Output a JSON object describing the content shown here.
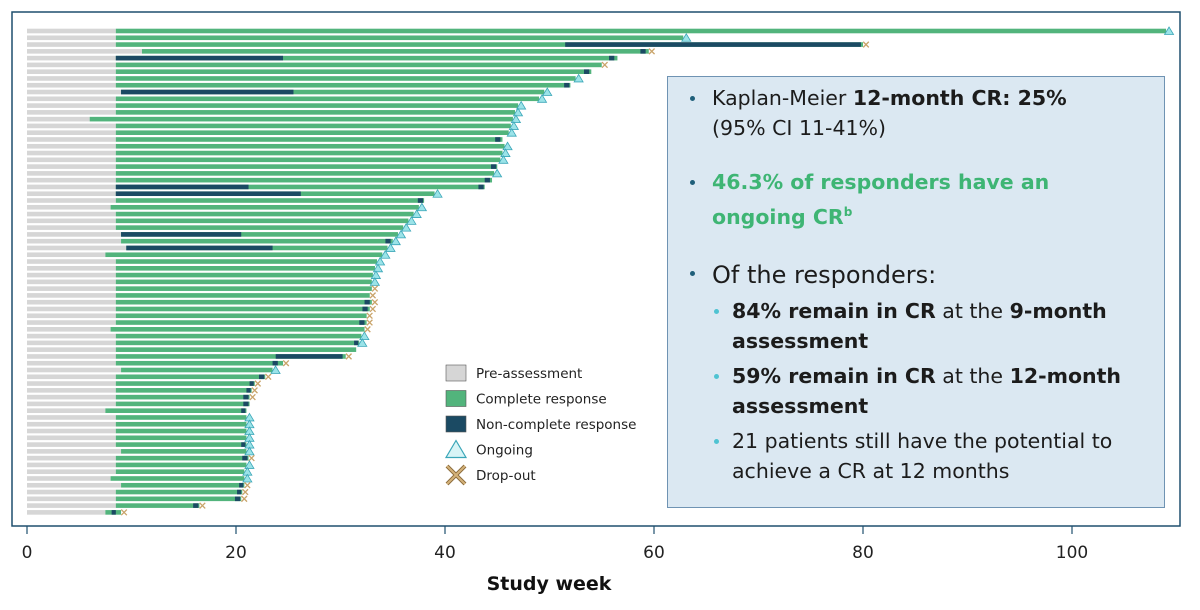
{
  "chart_data": {
    "type": "swimmer",
    "xlabel": "Study week",
    "xlim": [
      0,
      110
    ],
    "xticks": [
      0,
      20,
      40,
      60,
      80,
      100
    ],
    "legend": {
      "placement": "center-right",
      "items": [
        {
          "key": "pre",
          "label": "Pre-assessment",
          "color": "#d6d6d6"
        },
        {
          "key": "cr",
          "label": "Complete response",
          "color": "#52b47c"
        },
        {
          "key": "ncr",
          "label": "Non-complete response",
          "color": "#1b4a63"
        },
        {
          "key": "ongoing",
          "label": "Ongoing",
          "color": "#9be3e8"
        },
        {
          "key": "dropout",
          "label": "Drop-out",
          "color": "#c9a46a"
        }
      ]
    },
    "patients": [
      {
        "pre": 8.5,
        "end": 109,
        "ncr": [],
        "outcome": "ongoing"
      },
      {
        "pre": 8.5,
        "end": 62.8,
        "ncr": [],
        "outcome": "ongoing"
      },
      {
        "pre": 8.5,
        "end": 80,
        "ncr": [
          [
            51.5,
            79.8
          ]
        ],
        "outcome": "dropout"
      },
      {
        "pre": 11,
        "end": 59.5,
        "ncr": [
          [
            58.7,
            59.2
          ]
        ],
        "outcome": "dropout"
      },
      {
        "pre": 8.5,
        "end": 56.5,
        "ncr": [
          [
            8.5,
            24.5
          ],
          [
            55.7,
            56.2
          ]
        ],
        "outcome": "none"
      },
      {
        "pre": 8.5,
        "end": 55,
        "ncr": [],
        "outcome": "dropout"
      },
      {
        "pre": 8.5,
        "end": 54,
        "ncr": [
          [
            53.3,
            53.8
          ]
        ],
        "outcome": "none"
      },
      {
        "pre": 8.5,
        "end": 52.5,
        "ncr": [],
        "outcome": "ongoing"
      },
      {
        "pre": 8.5,
        "end": 52,
        "ncr": [
          [
            51.4,
            51.9
          ]
        ],
        "outcome": "none"
      },
      {
        "pre": 9,
        "end": 49.5,
        "ncr": [
          [
            9,
            25.5
          ]
        ],
        "outcome": "ongoing"
      },
      {
        "pre": 8.5,
        "end": 49,
        "ncr": [],
        "outcome": "ongoing"
      },
      {
        "pre": 8.5,
        "end": 47,
        "ncr": [],
        "outcome": "ongoing"
      },
      {
        "pre": 8.5,
        "end": 46.7,
        "ncr": [],
        "outcome": "ongoing"
      },
      {
        "pre": 6,
        "end": 46.5,
        "ncr": [],
        "outcome": "ongoing"
      },
      {
        "pre": 8.5,
        "end": 46.3,
        "ncr": [],
        "outcome": "ongoing"
      },
      {
        "pre": 8.5,
        "end": 46.1,
        "ncr": [],
        "outcome": "ongoing"
      },
      {
        "pre": 8.5,
        "end": 45.5,
        "ncr": [
          [
            44.8,
            45.3
          ]
        ],
        "outcome": "none"
      },
      {
        "pre": 8.5,
        "end": 45.7,
        "ncr": [],
        "outcome": "ongoing"
      },
      {
        "pre": 8.5,
        "end": 45.5,
        "ncr": [],
        "outcome": "ongoing"
      },
      {
        "pre": 8.5,
        "end": 45.3,
        "ncr": [],
        "outcome": "ongoing"
      },
      {
        "pre": 8.5,
        "end": 45,
        "ncr": [
          [
            44.4,
            44.9
          ]
        ],
        "outcome": "none"
      },
      {
        "pre": 8.5,
        "end": 44.7,
        "ncr": [],
        "outcome": "ongoing"
      },
      {
        "pre": 8.5,
        "end": 44.5,
        "ncr": [
          [
            43.8,
            44.3
          ]
        ],
        "outcome": "none"
      },
      {
        "pre": 8.5,
        "end": 43.8,
        "ncr": [
          [
            8.5,
            21.2
          ],
          [
            43.2,
            43.7
          ]
        ],
        "outcome": "none"
      },
      {
        "pre": 8.5,
        "end": 39,
        "ncr": [
          [
            8.5,
            26.2
          ]
        ],
        "outcome": "ongoing"
      },
      {
        "pre": 8.5,
        "end": 38,
        "ncr": [
          [
            37.4,
            37.9
          ]
        ],
        "outcome": "none"
      },
      {
        "pre": 8,
        "end": 37.5,
        "ncr": [],
        "outcome": "ongoing"
      },
      {
        "pre": 8.5,
        "end": 37,
        "ncr": [],
        "outcome": "ongoing"
      },
      {
        "pre": 8.5,
        "end": 36.5,
        "ncr": [],
        "outcome": "ongoing"
      },
      {
        "pre": 8.5,
        "end": 36,
        "ncr": [],
        "outcome": "ongoing"
      },
      {
        "pre": 9,
        "end": 35.5,
        "ncr": [
          [
            9,
            20.5
          ]
        ],
        "outcome": "ongoing"
      },
      {
        "pre": 9,
        "end": 35,
        "ncr": [
          [
            34.3,
            34.8
          ]
        ],
        "outcome": "ongoing"
      },
      {
        "pre": 9.5,
        "end": 34.5,
        "ncr": [
          [
            9.5,
            23.5
          ]
        ],
        "outcome": "ongoing"
      },
      {
        "pre": 7.5,
        "end": 34,
        "ncr": [],
        "outcome": "ongoing"
      },
      {
        "pre": 8.5,
        "end": 33.5,
        "ncr": [],
        "outcome": "ongoing"
      },
      {
        "pre": 8.5,
        "end": 33.3,
        "ncr": [],
        "outcome": "ongoing"
      },
      {
        "pre": 8.5,
        "end": 33.1,
        "ncr": [],
        "outcome": "ongoing"
      },
      {
        "pre": 8.5,
        "end": 33,
        "ncr": [],
        "outcome": "ongoing"
      },
      {
        "pre": 8.5,
        "end": 33,
        "ncr": [],
        "outcome": "dropout"
      },
      {
        "pre": 8.5,
        "end": 32.8,
        "ncr": [],
        "outcome": "dropout"
      },
      {
        "pre": 8.5,
        "end": 33,
        "ncr": [
          [
            32.3,
            32.8
          ]
        ],
        "outcome": "dropout"
      },
      {
        "pre": 8.5,
        "end": 32.8,
        "ncr": [
          [
            32.1,
            32.6
          ]
        ],
        "outcome": "dropout"
      },
      {
        "pre": 8.5,
        "end": 32.5,
        "ncr": [],
        "outcome": "dropout"
      },
      {
        "pre": 8.5,
        "end": 32.5,
        "ncr": [
          [
            31.8,
            32.3
          ]
        ],
        "outcome": "dropout"
      },
      {
        "pre": 8,
        "end": 32.3,
        "ncr": [],
        "outcome": "dropout"
      },
      {
        "pre": 8.5,
        "end": 32,
        "ncr": [],
        "outcome": "ongoing"
      },
      {
        "pre": 8.5,
        "end": 31.8,
        "ncr": [
          [
            31.3,
            31.7
          ]
        ],
        "outcome": "ongoing"
      },
      {
        "pre": 8.5,
        "end": 31.5,
        "ncr": [],
        "outcome": "none"
      },
      {
        "pre": 8.5,
        "end": 30.5,
        "ncr": [
          [
            23.8,
            30.2
          ]
        ],
        "outcome": "dropout"
      },
      {
        "pre": 8.5,
        "end": 24.5,
        "ncr": [
          [
            23.5,
            24
          ]
        ],
        "outcome": "dropout"
      },
      {
        "pre": 9,
        "end": 23.5,
        "ncr": [],
        "outcome": "ongoing"
      },
      {
        "pre": 8.5,
        "end": 22.8,
        "ncr": [
          [
            22.2,
            22.7
          ]
        ],
        "outcome": "dropout"
      },
      {
        "pre": 8.5,
        "end": 21.8,
        "ncr": [
          [
            21.3,
            21.7
          ]
        ],
        "outcome": "dropout"
      },
      {
        "pre": 8.5,
        "end": 21.5,
        "ncr": [
          [
            21,
            21.4
          ]
        ],
        "outcome": "dropout"
      },
      {
        "pre": 8.5,
        "end": 21.3,
        "ncr": [
          [
            20.7,
            21.2
          ]
        ],
        "outcome": "dropout"
      },
      {
        "pre": 8.5,
        "end": 21.3,
        "ncr": [
          [
            20.7,
            21.2
          ]
        ],
        "outcome": "none"
      },
      {
        "pre": 7.5,
        "end": 21,
        "ncr": [
          [
            20.5,
            20.9
          ]
        ],
        "outcome": "none"
      },
      {
        "pre": 8.5,
        "end": 21,
        "ncr": [],
        "outcome": "ongoing"
      },
      {
        "pre": 8.5,
        "end": 21,
        "ncr": [],
        "outcome": "ongoing"
      },
      {
        "pre": 8.5,
        "end": 21,
        "ncr": [],
        "outcome": "ongoing"
      },
      {
        "pre": 8.5,
        "end": 21,
        "ncr": [],
        "outcome": "ongoing"
      },
      {
        "pre": 8.5,
        "end": 21,
        "ncr": [
          [
            20.5,
            20.9
          ]
        ],
        "outcome": "ongoing"
      },
      {
        "pre": 9,
        "end": 21,
        "ncr": [],
        "outcome": "ongoing"
      },
      {
        "pre": 8.5,
        "end": 21.2,
        "ncr": [
          [
            20.6,
            21.1
          ]
        ],
        "outcome": "dropout"
      },
      {
        "pre": 8.5,
        "end": 21,
        "ncr": [],
        "outcome": "ongoing"
      },
      {
        "pre": 8.5,
        "end": 20.8,
        "ncr": [],
        "outcome": "ongoing"
      },
      {
        "pre": 8,
        "end": 20.8,
        "ncr": [],
        "outcome": "ongoing"
      },
      {
        "pre": 9,
        "end": 20.8,
        "ncr": [
          [
            20.3,
            20.7
          ]
        ],
        "outcome": "dropout"
      },
      {
        "pre": 8.5,
        "end": 20.6,
        "ncr": [
          [
            20.1,
            20.5
          ]
        ],
        "outcome": "dropout"
      },
      {
        "pre": 8.5,
        "end": 20.5,
        "ncr": [
          [
            19.9,
            20.4
          ]
        ],
        "outcome": "dropout"
      },
      {
        "pre": 8.5,
        "end": 16.5,
        "ncr": [
          [
            15.9,
            16.4
          ]
        ],
        "outcome": "dropout"
      },
      {
        "pre": 7.5,
        "end": 9,
        "ncr": [
          [
            8.1,
            8.5
          ]
        ],
        "outcome": "dropout"
      }
    ]
  },
  "info": {
    "b1_pre": "Kaplan-Meier ",
    "b1_bold": "12-month CR: 25%",
    "b1_line2": "(95% CI 11-41%)",
    "b2_text": "46.3% of responders have an ongoing CR",
    "b2_sup": "b",
    "b3_lead": "Of the responders:",
    "s1_bold": "84% remain in CR",
    "s1_mid": " at the ",
    "s1_bold2": "9-month assessment",
    "s2_bold": "59% remain in CR",
    "s2_mid": " at the ",
    "s2_bold2": "12-month assessment",
    "s3": "21 patients still have the potential to achieve a CR at 12 months"
  }
}
